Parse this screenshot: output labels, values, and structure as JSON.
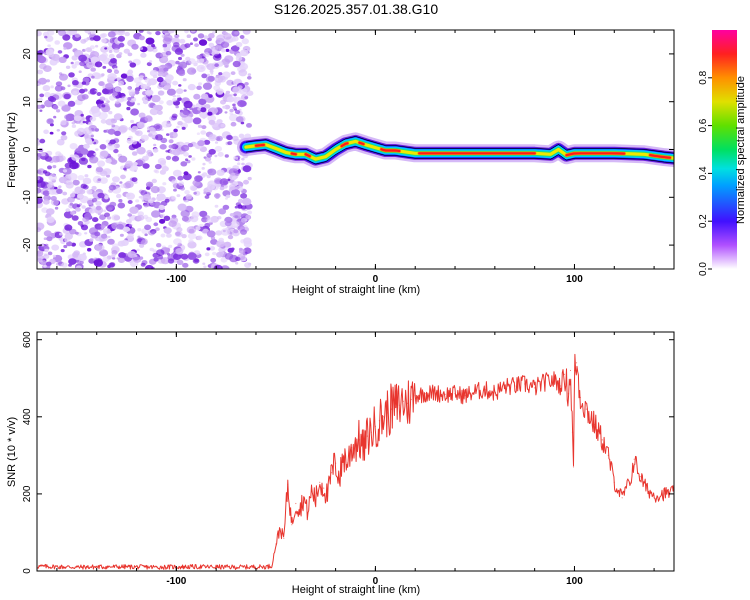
{
  "title": "S126.2025.357.01.38.G10",
  "chart_data": [
    {
      "type": "heatmap",
      "title": "S126.2025.357.01.38.G10",
      "xlabel": "Height of straight line (km)",
      "ylabel": "Frequency (Hz)",
      "xlim": [
        -170,
        150
      ],
      "ylim": [
        -25,
        25
      ],
      "xticks": [
        -100,
        0,
        100
      ],
      "xtick_labels": [
        "-100",
        "0",
        "100"
      ],
      "yticks": [
        -20,
        -10,
        0,
        10,
        20
      ],
      "ytick_labels": [
        "-20",
        "-10",
        "0",
        "10",
        "20"
      ],
      "noise_region_x": [
        -170,
        -63
      ],
      "ridge": {
        "x": [
          -65,
          -60,
          -55,
          -50,
          -45,
          -40,
          -35,
          -30,
          -25,
          -20,
          -15,
          -10,
          -5,
          0,
          5,
          10,
          20,
          40,
          60,
          80,
          88,
          92,
          96,
          100,
          120,
          135,
          145,
          150
        ],
        "freq": [
          0.5,
          0.8,
          1.0,
          0.2,
          -0.6,
          -1.0,
          -1.0,
          -2.0,
          -1.5,
          0.0,
          1.2,
          1.7,
          1.0,
          0.4,
          -0.2,
          -0.2,
          -0.8,
          -0.8,
          -0.8,
          -0.8,
          -1.0,
          0.0,
          -1.2,
          -0.8,
          -0.8,
          -1.0,
          -1.6,
          -1.8
        ]
      },
      "colorbar": {
        "label": "Normalized spectral amplitude",
        "range": [
          0,
          1
        ],
        "ticks": [
          0.0,
          0.2,
          0.4,
          0.6,
          0.8
        ],
        "tick_labels": [
          "0.0",
          "0.2",
          "0.4",
          "0.6",
          "0.8"
        ],
        "colormap": [
          "#ffffff",
          "#a000ff",
          "#3020ff",
          "#00c8ff",
          "#00e070",
          "#40e000",
          "#e0e000",
          "#ff9000",
          "#ff2020",
          "#ff00a0"
        ]
      }
    },
    {
      "type": "line",
      "xlabel": "Height of straight line (km)",
      "ylabel": "SNR (10 * v/v)",
      "xlim": [
        -170,
        150
      ],
      "ylim": [
        0,
        620
      ],
      "xticks": [
        -100,
        0,
        100
      ],
      "xtick_labels": [
        "-100",
        "0",
        "100"
      ],
      "yticks": [
        0,
        200,
        400,
        600
      ],
      "ytick_labels": [
        "0",
        "200",
        "400",
        "600"
      ],
      "series": [
        {
          "name": "SNR",
          "color": "#e8352e",
          "x": [
            -170,
            -150,
            -130,
            -110,
            -90,
            -70,
            -55,
            -52,
            -50,
            -48,
            -46,
            -44,
            -42,
            -40,
            -38,
            -36,
            -34,
            -32,
            -30,
            -28,
            -26,
            -24,
            -22,
            -20,
            -18,
            -16,
            -14,
            -12,
            -10,
            -8,
            -6,
            -4,
            -2,
            0,
            2,
            4,
            6,
            8,
            10,
            12,
            14,
            16,
            18,
            20,
            25,
            30,
            35,
            40,
            45,
            50,
            55,
            60,
            65,
            70,
            75,
            80,
            85,
            90,
            93,
            95,
            97,
            98,
            99,
            99.5,
            100,
            101,
            103,
            106,
            110,
            114,
            117,
            120,
            124,
            126,
            128,
            130,
            133,
            136,
            140,
            145,
            150
          ],
          "y": [
            12,
            10,
            11,
            10,
            11,
            10,
            11,
            13,
            70,
            110,
            85,
            225,
            120,
            175,
            160,
            190,
            150,
            210,
            185,
            230,
            215,
            195,
            255,
            280,
            240,
            300,
            280,
            320,
            330,
            340,
            315,
            350,
            360,
            375,
            390,
            400,
            410,
            420,
            425,
            430,
            440,
            435,
            445,
            455,
            460,
            462,
            458,
            460,
            455,
            465,
            470,
            462,
            478,
            480,
            485,
            475,
            490,
            495,
            480,
            510,
            460,
            520,
            360,
            270,
            520,
            540,
            450,
            420,
            380,
            340,
            300,
            230,
            190,
            215,
            230,
            290,
            245,
            215,
            195,
            200,
            205
          ]
        }
      ]
    }
  ]
}
